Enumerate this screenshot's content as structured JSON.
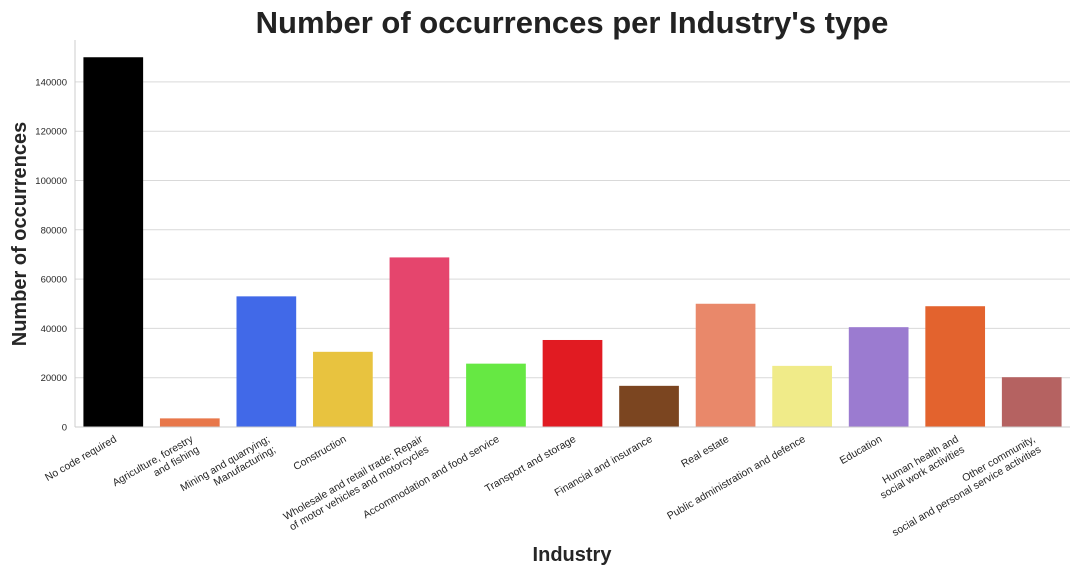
{
  "chart_data": {
    "type": "bar",
    "title": "Number of occurrences per Industry's type",
    "xlabel": "Industry",
    "ylabel": "Number of occurrences",
    "ylim": [
      0,
      157000
    ],
    "yticks": [
      0,
      20000,
      40000,
      60000,
      80000,
      100000,
      120000,
      140000
    ],
    "grid": "horizontal",
    "legend": "none",
    "categories": [
      [
        "No code required"
      ],
      [
        "Agriculture, forestry",
        "and fishing"
      ],
      [
        "Mining and quarrying;",
        "Manufacturing;"
      ],
      [
        "Construction"
      ],
      [
        "Wholesale and retail trade; Repair",
        "of motor vehicles and motorcycles"
      ],
      [
        "Accommodation and food service"
      ],
      [
        "Transport and storage"
      ],
      [
        "Financial and insurance"
      ],
      [
        "Real estate"
      ],
      [
        "Public administration and defence"
      ],
      [
        "Education"
      ],
      [
        "Human health and",
        "social work activities"
      ],
      [
        "Other community,",
        "social and personal service activities"
      ]
    ],
    "values": [
      150000,
      3500,
      53000,
      30500,
      68800,
      25700,
      35300,
      16700,
      50000,
      24800,
      40500,
      49000,
      20200
    ],
    "colors": [
      "#000000",
      "#E8774A",
      "#4169E8",
      "#E8C33F",
      "#E5456D",
      "#66E843",
      "#E11B22",
      "#7B4520",
      "#E9886A",
      "#F0EB89",
      "#9B7BD0",
      "#E3632E",
      "#B56261"
    ]
  }
}
